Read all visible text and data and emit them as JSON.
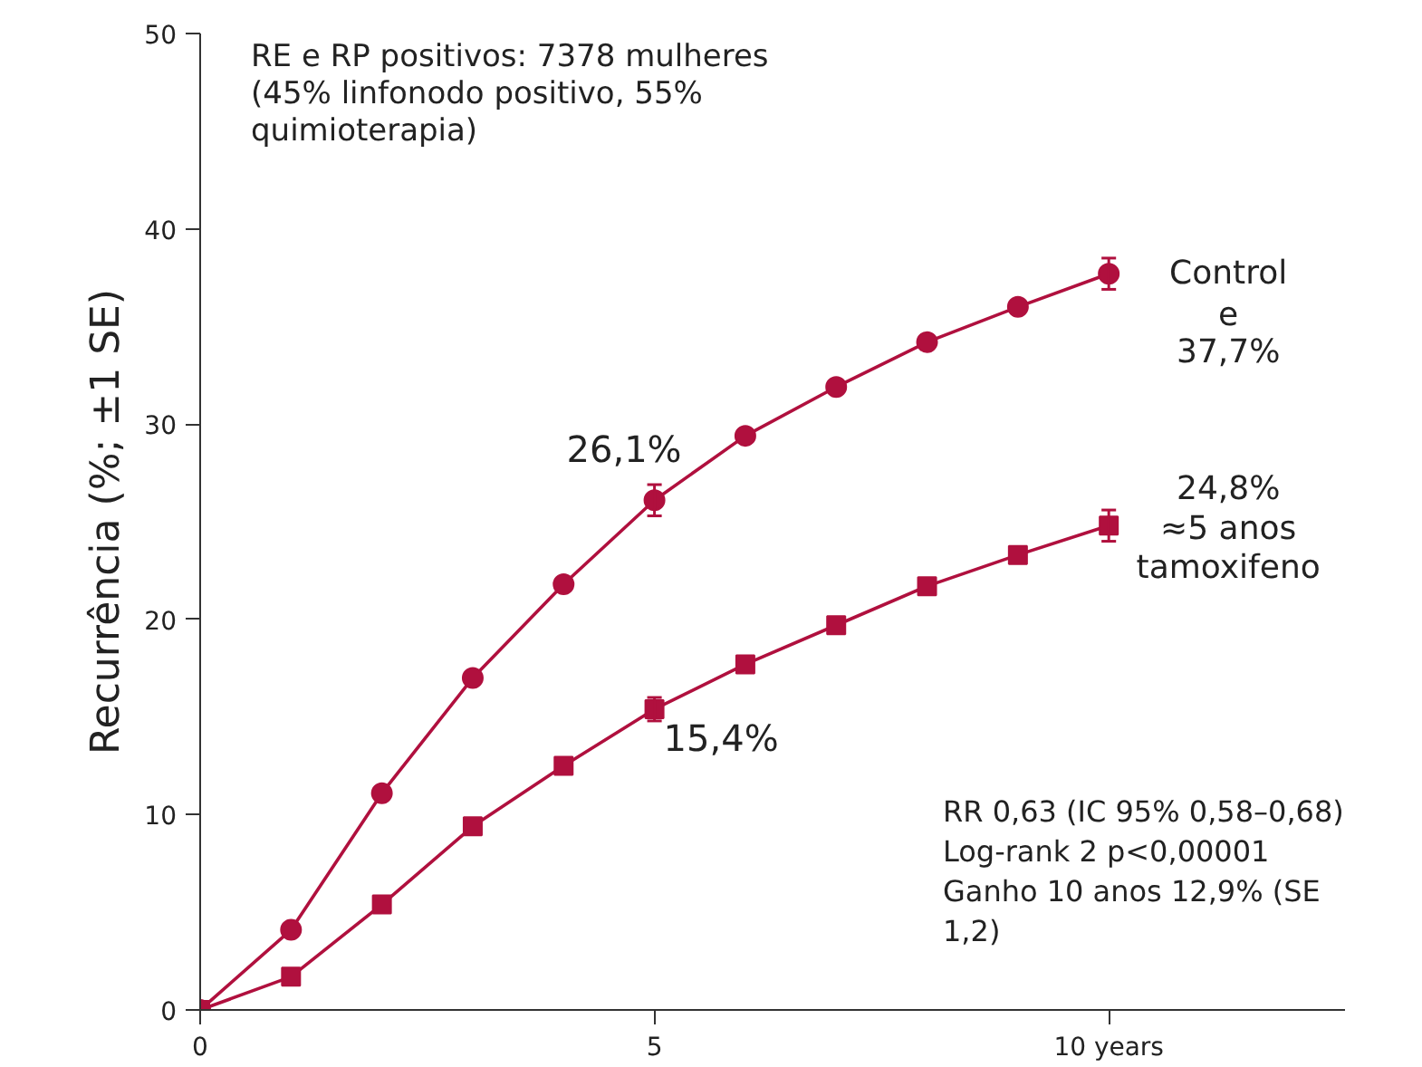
{
  "chart_data": {
    "type": "line",
    "title": "RE e RP positivos: 7378 mulheres (45% linfonodo positivo, 55% quimioterapia)",
    "ylabel": "Recurrência (%; ±1 SE)",
    "x": [
      0,
      1,
      2,
      3,
      4,
      5,
      6,
      7,
      8,
      9,
      10
    ],
    "series": [
      {
        "color": "#b0103e",
        "marker": "circle",
        "values": [
          0,
          4.1,
          11.1,
          17.0,
          21.8,
          26.1,
          29.4,
          31.9,
          34.2,
          36.0,
          37.7
        ],
        "errors": [
          null,
          null,
          null,
          null,
          null,
          0.8,
          null,
          null,
          null,
          null,
          0.8
        ],
        "value_labels": [
          null,
          null,
          null,
          null,
          null,
          "26,1%",
          null,
          null,
          null,
          null,
          null
        ]
      },
      {
        "color": "#b0103e",
        "marker": "square",
        "values": [
          0,
          1.7,
          5.4,
          9.4,
          12.5,
          15.4,
          17.7,
          19.7,
          21.7,
          23.3,
          24.8
        ],
        "errors": [
          null,
          null,
          null,
          null,
          null,
          0.6,
          null,
          null,
          null,
          null,
          0.8
        ],
        "value_labels": [
          null,
          null,
          null,
          null,
          null,
          "15,4%",
          null,
          null,
          null,
          null,
          null
        ]
      }
    ],
    "xlim": [
      0,
      12.6
    ],
    "xticks": [
      0,
      5,
      {
        "value": 10,
        "label": "10 years"
      }
    ],
    "ylim": [
      0,
      50
    ],
    "yticks": [
      0,
      10,
      20,
      30,
      40,
      50
    ],
    "grid": false,
    "line_style": "solid",
    "annotations": [
      {
        "text": "Control e 37,7%",
        "x": 10,
        "y": 37.7
      },
      {
        "text": "24,8% ≈5 anos tamoxifeno",
        "x": 10,
        "y": 24.8
      },
      "RR 0,63 (IC 95% 0,58–0,68)",
      "Log-rank 2 p<0,00001",
      "Ganho 10 anos 12,9% (SE 1,2)"
    ]
  }
}
